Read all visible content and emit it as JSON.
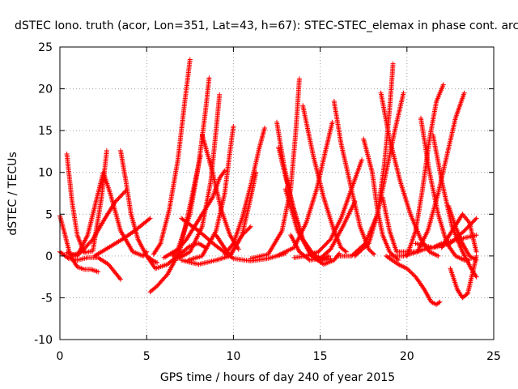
{
  "chart_data": {
    "type": "scatter",
    "title": "dSTEC Iono. truth (acor, Lon=351, Lat=43, h=67): STEC-STEC_elemax in phase cont. arc",
    "xlabel": "GPS time / hours of day 240 of year 2015",
    "ylabel": "dSTEC  / TECUs",
    "xlim": [
      0,
      25
    ],
    "ylim": [
      -10,
      25
    ],
    "xticks": [
      "0",
      "5",
      "10",
      "15",
      "20",
      "25"
    ],
    "yticks": [
      "-10",
      "-5",
      "0",
      "5",
      "10",
      "15",
      "20",
      "25"
    ],
    "grid": true,
    "marker": "+",
    "color": "#ff0000",
    "series": [
      {
        "x": [
          0.0,
          0.3,
          0.6,
          1.0,
          1.4,
          1.8,
          2.2
        ],
        "y": [
          4.8,
          2.5,
          0.0,
          -1.3,
          -1.6,
          -1.6,
          -1.9
        ]
      },
      {
        "x": [
          0.0,
          0.5,
          1.0,
          1.6,
          2.2,
          2.8,
          3.5
        ],
        "y": [
          0.5,
          -0.3,
          -0.5,
          -0.2,
          -0.2,
          -1.0,
          -2.8
        ]
      },
      {
        "x": [
          0.4,
          0.7,
          1.0,
          1.4,
          1.9,
          2.4,
          2.7
        ],
        "y": [
          12.2,
          6.5,
          2.5,
          0.4,
          0.6,
          7.0,
          12.6
        ]
      },
      {
        "x": [
          0.4,
          1.0,
          1.6,
          2.2,
          2.5,
          2.9,
          3.5,
          4.2,
          4.8,
          5.0
        ],
        "y": [
          0.4,
          0.0,
          2.5,
          7.5,
          10.0,
          7.5,
          3.0,
          0.5,
          0.0,
          0.5
        ]
      },
      {
        "x": [
          0.6,
          1.2,
          1.9,
          2.6,
          3.2,
          3.8
        ],
        "y": [
          0.0,
          0.4,
          2.0,
          4.5,
          6.5,
          7.8
        ]
      },
      {
        "x": [
          2.0,
          2.8,
          3.6,
          4.3,
          4.9,
          5.2
        ],
        "y": [
          0.0,
          1.0,
          2.0,
          3.0,
          4.0,
          4.5
        ]
      },
      {
        "x": [
          3.5,
          3.8,
          4.1,
          4.5,
          5.0,
          5.4,
          5.6
        ],
        "y": [
          12.6,
          9.0,
          5.0,
          2.0,
          0.0,
          -0.6,
          -0.8
        ]
      },
      {
        "x": [
          5.0,
          5.5,
          6.2,
          6.9,
          7.5,
          8.0,
          8.4
        ],
        "y": [
          0.0,
          -1.5,
          -1.0,
          0.2,
          1.2,
          1.5,
          1.0
        ]
      },
      {
        "x": [
          5.4,
          5.8,
          6.3,
          6.8,
          7.2,
          7.5
        ],
        "y": [
          0.2,
          1.5,
          5.5,
          11.5,
          18.5,
          23.5
        ]
      },
      {
        "x": [
          5.2,
          5.6,
          6.2,
          6.9,
          7.6,
          8.1
        ],
        "y": [
          -4.3,
          -3.6,
          -2.2,
          0.5,
          7.0,
          12.0
        ]
      },
      {
        "x": [
          6.0,
          6.8,
          7.5,
          8.0,
          8.4,
          8.6
        ],
        "y": [
          -0.2,
          0.8,
          5.0,
          11.0,
          17.5,
          21.3
        ]
      },
      {
        "x": [
          6.5,
          7.3,
          8.2,
          8.8,
          9.2,
          9.5
        ],
        "y": [
          0.0,
          2.0,
          5.0,
          7.0,
          9.3,
          10.2
        ]
      },
      {
        "x": [
          6.8,
          7.5,
          8.2,
          8.7,
          9.0,
          9.2
        ],
        "y": [
          -0.3,
          0.5,
          3.5,
          9.0,
          15.0,
          19.3
        ]
      },
      {
        "x": [
          7.4,
          8.2,
          9.0,
          9.5,
          9.8,
          10.0
        ],
        "y": [
          -0.5,
          0.0,
          3.0,
          7.5,
          12.5,
          15.5
        ]
      },
      {
        "x": [
          7.0,
          8.0,
          9.0,
          10.0,
          11.0,
          12.0,
          13.0
        ],
        "y": [
          4.5,
          3.0,
          1.2,
          -0.3,
          -0.6,
          -0.3,
          0.3
        ]
      },
      {
        "x": [
          7.0,
          8.0,
          9.0,
          9.8,
          10.5,
          11.0
        ],
        "y": [
          -0.5,
          -1.0,
          -0.5,
          0.0,
          2.5,
          3.5
        ]
      },
      {
        "x": [
          8.2,
          8.8,
          9.3,
          9.8,
          10.3
        ],
        "y": [
          14.5,
          10.0,
          5.5,
          2.5,
          0.8
        ]
      },
      {
        "x": [
          9.5,
          10.0,
          10.5,
          11.0,
          11.5,
          11.8
        ],
        "y": [
          0.2,
          1.5,
          4.5,
          8.5,
          13.0,
          15.3
        ]
      },
      {
        "x": [
          9.0,
          9.8,
          10.5,
          11.0,
          11.3
        ],
        "y": [
          2.5,
          0.0,
          2.5,
          7.0,
          10.0
        ]
      },
      {
        "x": [
          11.0,
          12.0,
          12.8,
          13.3,
          13.6,
          13.8
        ],
        "y": [
          -0.3,
          0.2,
          3.0,
          8.0,
          15.0,
          21.2
        ]
      },
      {
        "x": [
          12.5,
          12.9,
          13.4,
          14.0,
          14.6,
          15.2,
          15.6
        ],
        "y": [
          16.0,
          11.0,
          6.0,
          2.0,
          0.2,
          -0.5,
          -0.3
        ]
      },
      {
        "x": [
          12.6,
          13.0,
          13.5,
          14.0,
          14.5,
          15.0,
          15.5
        ],
        "y": [
          13.0,
          9.5,
          5.5,
          2.0,
          0.0,
          -0.5,
          0.0
        ]
      },
      {
        "x": [
          13.0,
          13.7,
          14.5,
          15.2,
          15.8,
          16.1
        ],
        "y": [
          8.0,
          3.0,
          0.0,
          -1.0,
          -0.5,
          0.3
        ]
      },
      {
        "x": [
          13.3,
          13.8,
          14.4,
          15.0,
          15.6,
          16.3,
          17.0
        ],
        "y": [
          2.5,
          0.5,
          -0.5,
          -0.3,
          0.8,
          3.5,
          6.5
        ]
      },
      {
        "x": [
          13.5,
          14.2,
          14.9,
          15.6,
          16.2,
          16.8,
          17.4
        ],
        "y": [
          -0.2,
          0.0,
          0.5,
          2.0,
          4.5,
          8.0,
          11.5
        ]
      },
      {
        "x": [
          12.5,
          13.5,
          14.2,
          14.8,
          15.3,
          15.7
        ],
        "y": [
          0.0,
          1.0,
          4.0,
          8.0,
          12.5,
          16.0
        ]
      },
      {
        "x": [
          14.0,
          14.6,
          15.2,
          15.8,
          16.2,
          16.5
        ],
        "y": [
          18.0,
          12.0,
          7.0,
          3.0,
          1.0,
          0.5
        ]
      },
      {
        "x": [
          15.8,
          16.2,
          16.8,
          17.3,
          17.8,
          18.1
        ],
        "y": [
          18.5,
          13.5,
          8.0,
          3.5,
          0.8,
          0.2
        ]
      },
      {
        "x": [
          16.0,
          16.8,
          17.6,
          18.3,
          18.8,
          19.3,
          19.8
        ],
        "y": [
          0.0,
          0.0,
          1.5,
          5.0,
          10.0,
          15.0,
          19.5
        ]
      },
      {
        "x": [
          17.0,
          17.8,
          18.3,
          18.7,
          19.0,
          19.2
        ],
        "y": [
          0.0,
          1.5,
          5.0,
          11.0,
          17.5,
          23.0
        ]
      },
      {
        "x": [
          17.5,
          18.0,
          18.3,
          18.6,
          19.0,
          19.5
        ],
        "y": [
          14.0,
          10.0,
          5.5,
          2.5,
          0.5,
          -0.5
        ]
      },
      {
        "x": [
          18.5,
          19.0,
          19.6,
          20.2,
          20.8,
          21.3,
          21.8
        ],
        "y": [
          19.5,
          14.0,
          9.0,
          5.0,
          2.0,
          0.5,
          0.0
        ]
      },
      {
        "x": [
          18.6,
          19.0,
          19.4,
          19.8,
          20.2,
          20.6,
          21.0,
          21.5,
          22.0,
          23.0,
          24.0
        ],
        "y": [
          7.0,
          3.0,
          0.5,
          0.5,
          0.5,
          0.5,
          0.8,
          1.0,
          1.5,
          2.0,
          2.5
        ]
      },
      {
        "x": [
          18.8,
          19.5,
          20.0,
          20.5,
          21.0,
          21.4,
          21.7,
          21.9
        ],
        "y": [
          0.0,
          -1.0,
          -1.5,
          -2.5,
          -4.0,
          -5.5,
          -5.8,
          -5.5
        ]
      },
      {
        "x": [
          19.0,
          19.8,
          20.6,
          21.2,
          21.8,
          22.3,
          22.8,
          23.3
        ],
        "y": [
          0.0,
          0.0,
          0.5,
          3.0,
          7.5,
          12.0,
          16.5,
          19.5
        ]
      },
      {
        "x": [
          20.0,
          20.5,
          20.9,
          21.3,
          21.7,
          22.1
        ],
        "y": [
          0.0,
          3.0,
          8.0,
          14.0,
          18.5,
          20.5
        ]
      },
      {
        "x": [
          20.8,
          21.3,
          21.8,
          22.3,
          22.8,
          23.3,
          23.6
        ],
        "y": [
          16.5,
          10.0,
          5.0,
          1.5,
          0.0,
          -0.5,
          -0.5
        ]
      },
      {
        "x": [
          21.5,
          22.0,
          22.6,
          23.2,
          23.7,
          24.0
        ],
        "y": [
          14.5,
          9.0,
          3.5,
          0.5,
          -1.5,
          -2.5
        ]
      },
      {
        "x": [
          22.0,
          22.6,
          23.2,
          23.6,
          24.0
        ],
        "y": [
          1.0,
          3.0,
          5.0,
          4.0,
          0.5
        ]
      },
      {
        "x": [
          22.5,
          22.9,
          23.2,
          23.5,
          23.9,
          24.0
        ],
        "y": [
          -1.5,
          -4.0,
          -5.0,
          -4.5,
          -1.0,
          0.0
        ]
      },
      {
        "x": [
          22.4,
          22.8,
          23.2,
          23.6,
          24.0
        ],
        "y": [
          6.0,
          3.5,
          1.5,
          0.0,
          -0.5
        ]
      },
      {
        "x": [
          20.5,
          21.5,
          22.5,
          23.3,
          24.0
        ],
        "y": [
          1.5,
          1.0,
          1.5,
          3.0,
          4.5
        ]
      }
    ]
  }
}
